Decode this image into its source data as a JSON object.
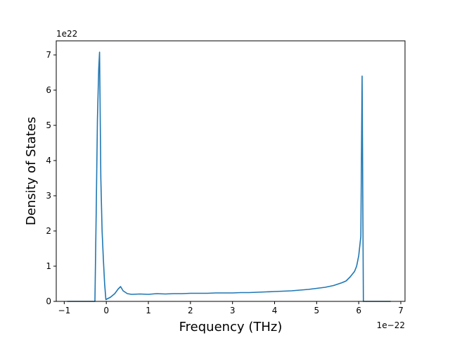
{
  "chart_data": {
    "type": "line",
    "title": "",
    "xlabel": "Frequency (THz)",
    "ylabel": "Density of States",
    "x_offset_label": "1e−22",
    "y_offset_label": "1e22",
    "xlim": [
      -1.19,
      7.1
    ],
    "ylim": [
      0,
      7.4
    ],
    "x_ticks": [
      -1,
      0,
      1,
      2,
      3,
      4,
      5,
      6,
      7
    ],
    "x_tick_labels": [
      "−1",
      "0",
      "1",
      "2",
      "3",
      "4",
      "5",
      "6",
      "7"
    ],
    "y_ticks": [
      0,
      1,
      2,
      3,
      4,
      5,
      6,
      7
    ],
    "y_tick_labels": [
      "0",
      "1",
      "2",
      "3",
      "4",
      "5",
      "6",
      "7"
    ],
    "grid": false,
    "series": [
      {
        "color": "#1f77b4",
        "x": [
          -0.93,
          -0.5,
          -0.3,
          -0.27,
          -0.24,
          -0.21,
          -0.18,
          -0.16,
          -0.13,
          -0.1,
          -0.07,
          -0.04,
          -0.01,
          0.02,
          0.1,
          0.2,
          0.28,
          0.34,
          0.4,
          0.5,
          0.6,
          0.8,
          1.0,
          1.2,
          1.4,
          1.6,
          1.8,
          2.0,
          2.2,
          2.4,
          2.6,
          2.8,
          3.0,
          3.2,
          3.4,
          3.6,
          3.8,
          4.0,
          4.2,
          4.4,
          4.6,
          4.8,
          5.0,
          5.2,
          5.4,
          5.6,
          5.7,
          5.8,
          5.9,
          5.95,
          6.0,
          6.05,
          6.08,
          6.11,
          6.13,
          6.2,
          6.76
        ],
        "y": [
          0,
          0,
          0,
          0,
          2.5,
          5.2,
          6.6,
          7.08,
          3.5,
          2.0,
          1.2,
          0.5,
          0.05,
          0.07,
          0.12,
          0.22,
          0.35,
          0.42,
          0.3,
          0.22,
          0.2,
          0.21,
          0.2,
          0.22,
          0.21,
          0.22,
          0.22,
          0.23,
          0.23,
          0.23,
          0.24,
          0.24,
          0.24,
          0.25,
          0.25,
          0.26,
          0.27,
          0.28,
          0.29,
          0.3,
          0.32,
          0.34,
          0.37,
          0.4,
          0.45,
          0.53,
          0.58,
          0.7,
          0.85,
          1.0,
          1.3,
          1.85,
          6.4,
          0,
          0,
          0,
          0
        ]
      }
    ]
  }
}
